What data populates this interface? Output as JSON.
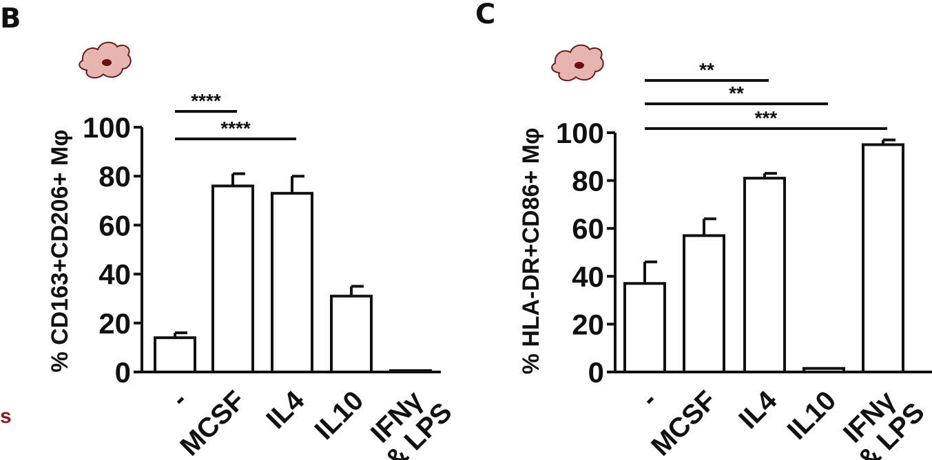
{
  "edge_fragment": "s",
  "chart_data": [
    {
      "panel_label": "B",
      "type": "bar",
      "ylabel": "% CD163+CD206+ Mφ",
      "ylim": [
        0,
        100
      ],
      "yticks": [
        "0",
        "20",
        "40",
        "60",
        "80",
        "100"
      ],
      "categories": [
        "-",
        "MCSF",
        "IL4",
        "IL10",
        "IFNγ\n& LPS"
      ],
      "values": [
        14,
        76,
        73,
        31,
        0
      ],
      "errors": [
        2,
        5,
        7,
        4,
        0
      ],
      "significance": [
        {
          "from": 0,
          "to": 1,
          "label": "****"
        },
        {
          "from": 0,
          "to": 2,
          "label": "****"
        }
      ],
      "colors": {
        "bar_fill": "#ffffff",
        "bar_stroke": "#111111",
        "cell": "#e8b4b0",
        "nucleus": "#6b1010"
      }
    },
    {
      "panel_label": "C",
      "type": "bar",
      "ylabel": "% HLA-DR+CD86+ Mφ",
      "ylim": [
        0,
        100
      ],
      "yticks": [
        "0",
        "20",
        "40",
        "60",
        "80",
        "100"
      ],
      "categories": [
        "-",
        "MCSF",
        "IL4",
        "IL10",
        "IFNγ\n& LPS"
      ],
      "values": [
        37,
        57,
        81,
        1.5,
        95
      ],
      "errors": [
        9,
        7,
        2,
        0.5,
        2
      ],
      "significance": [
        {
          "from": 0,
          "to": 2,
          "label": "**"
        },
        {
          "from": 0,
          "to": 3,
          "label": "**"
        },
        {
          "from": 0,
          "to": 4,
          "label": "***"
        }
      ],
      "colors": {
        "bar_fill": "#ffffff",
        "bar_stroke": "#111111",
        "cell": "#e8b4b0",
        "nucleus": "#6b1010"
      }
    }
  ]
}
